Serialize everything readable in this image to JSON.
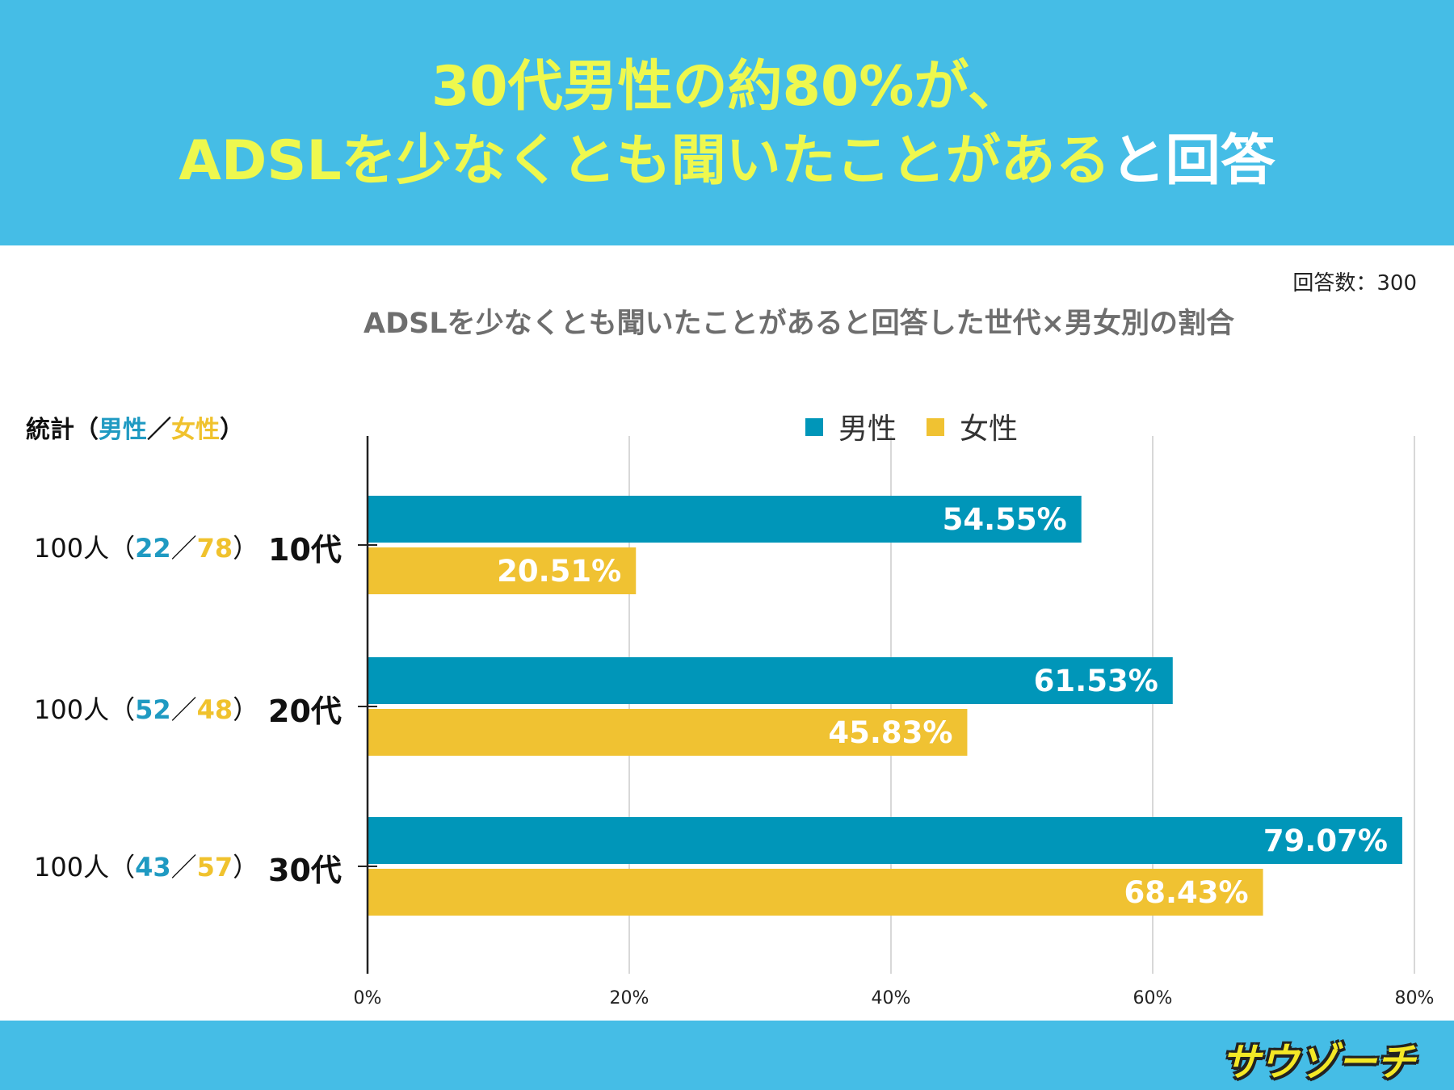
{
  "headline": {
    "line1": "30代男性の約80%が、",
    "line2_highlight": "ADSLを少なくとも聞いたことがある",
    "line2_rest": "と回答"
  },
  "respondents": "回答数：300",
  "stats_header": {
    "prefix": "統計（",
    "male": "男性",
    "sep": "／",
    "female": "女性",
    "suffix": "）"
  },
  "groups": [
    {
      "total": "100人（",
      "male": "22",
      "sep": "／",
      "female": "78",
      "close": "）"
    },
    {
      "total": "100人（",
      "male": "52",
      "sep": "／",
      "female": "48",
      "close": "）"
    },
    {
      "total": "100人（",
      "male": "43",
      "sep": "／",
      "female": "57",
      "close": "）"
    }
  ],
  "logo_text": "サウゾーチ",
  "colors": {
    "male": "#0096b9",
    "female": "#f0c232",
    "banner": "#45bde6",
    "grid": "#cccccc"
  },
  "chart_data": {
    "type": "bar",
    "orientation": "horizontal",
    "title": "ADSLを少なくとも聞いたことがあると回答した世代×男女別の割合",
    "categories": [
      "10代",
      "20代",
      "30代"
    ],
    "series": [
      {
        "name": "男性",
        "values": [
          54.55,
          61.53,
          79.07
        ],
        "labels": [
          "54.55%",
          "61.53%",
          "79.07%"
        ]
      },
      {
        "name": "女性",
        "values": [
          20.51,
          45.83,
          68.43
        ],
        "labels": [
          "20.51%",
          "45.83%",
          "68.43%"
        ]
      }
    ],
    "xlim": [
      0,
      80
    ],
    "xticks": [
      0,
      20,
      40,
      60,
      80
    ],
    "xtick_labels": [
      "0%",
      "20%",
      "40%",
      "60%",
      "80%"
    ],
    "grid": "vertical",
    "legend": "top-center"
  }
}
